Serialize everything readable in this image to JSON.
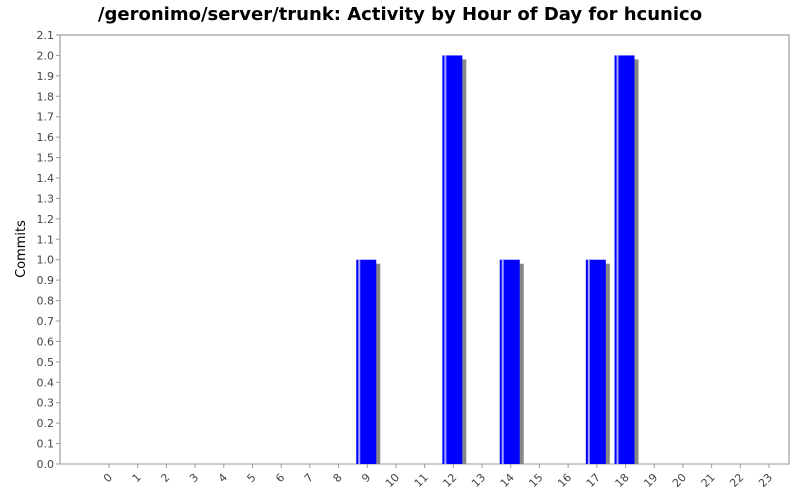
{
  "chart_data": {
    "type": "bar",
    "title": "/geronimo/server/trunk: Activity by Hour of Day for hcunico",
    "xlabel": "",
    "ylabel": "Commits",
    "categories": [
      "0",
      "1",
      "2",
      "3",
      "4",
      "5",
      "6",
      "7",
      "8",
      "9",
      "10",
      "11",
      "12",
      "13",
      "14",
      "15",
      "16",
      "17",
      "18",
      "19",
      "20",
      "21",
      "22",
      "23"
    ],
    "values": [
      0,
      0,
      0,
      0,
      0,
      0,
      0,
      0,
      0,
      1,
      0,
      0,
      2,
      0,
      1,
      0,
      0,
      1,
      2,
      0,
      0,
      0,
      0,
      0
    ],
    "ylim": [
      0,
      2.1
    ],
    "yticks": [
      "0.0",
      "0.1",
      "0.2",
      "0.3",
      "0.4",
      "0.5",
      "0.6",
      "0.7",
      "0.8",
      "0.9",
      "1.0",
      "1.1",
      "1.2",
      "1.3",
      "1.4",
      "1.5",
      "1.6",
      "1.7",
      "1.8",
      "1.9",
      "2.0",
      "2.1"
    ],
    "grid": false,
    "legend": "none",
    "colors": {
      "bar": "#0000ff",
      "bar_highlight": "#a6a6ff",
      "shadow": "#888888",
      "axis": "#999999",
      "plot_border": "#888888",
      "background": "#ffffff"
    }
  }
}
